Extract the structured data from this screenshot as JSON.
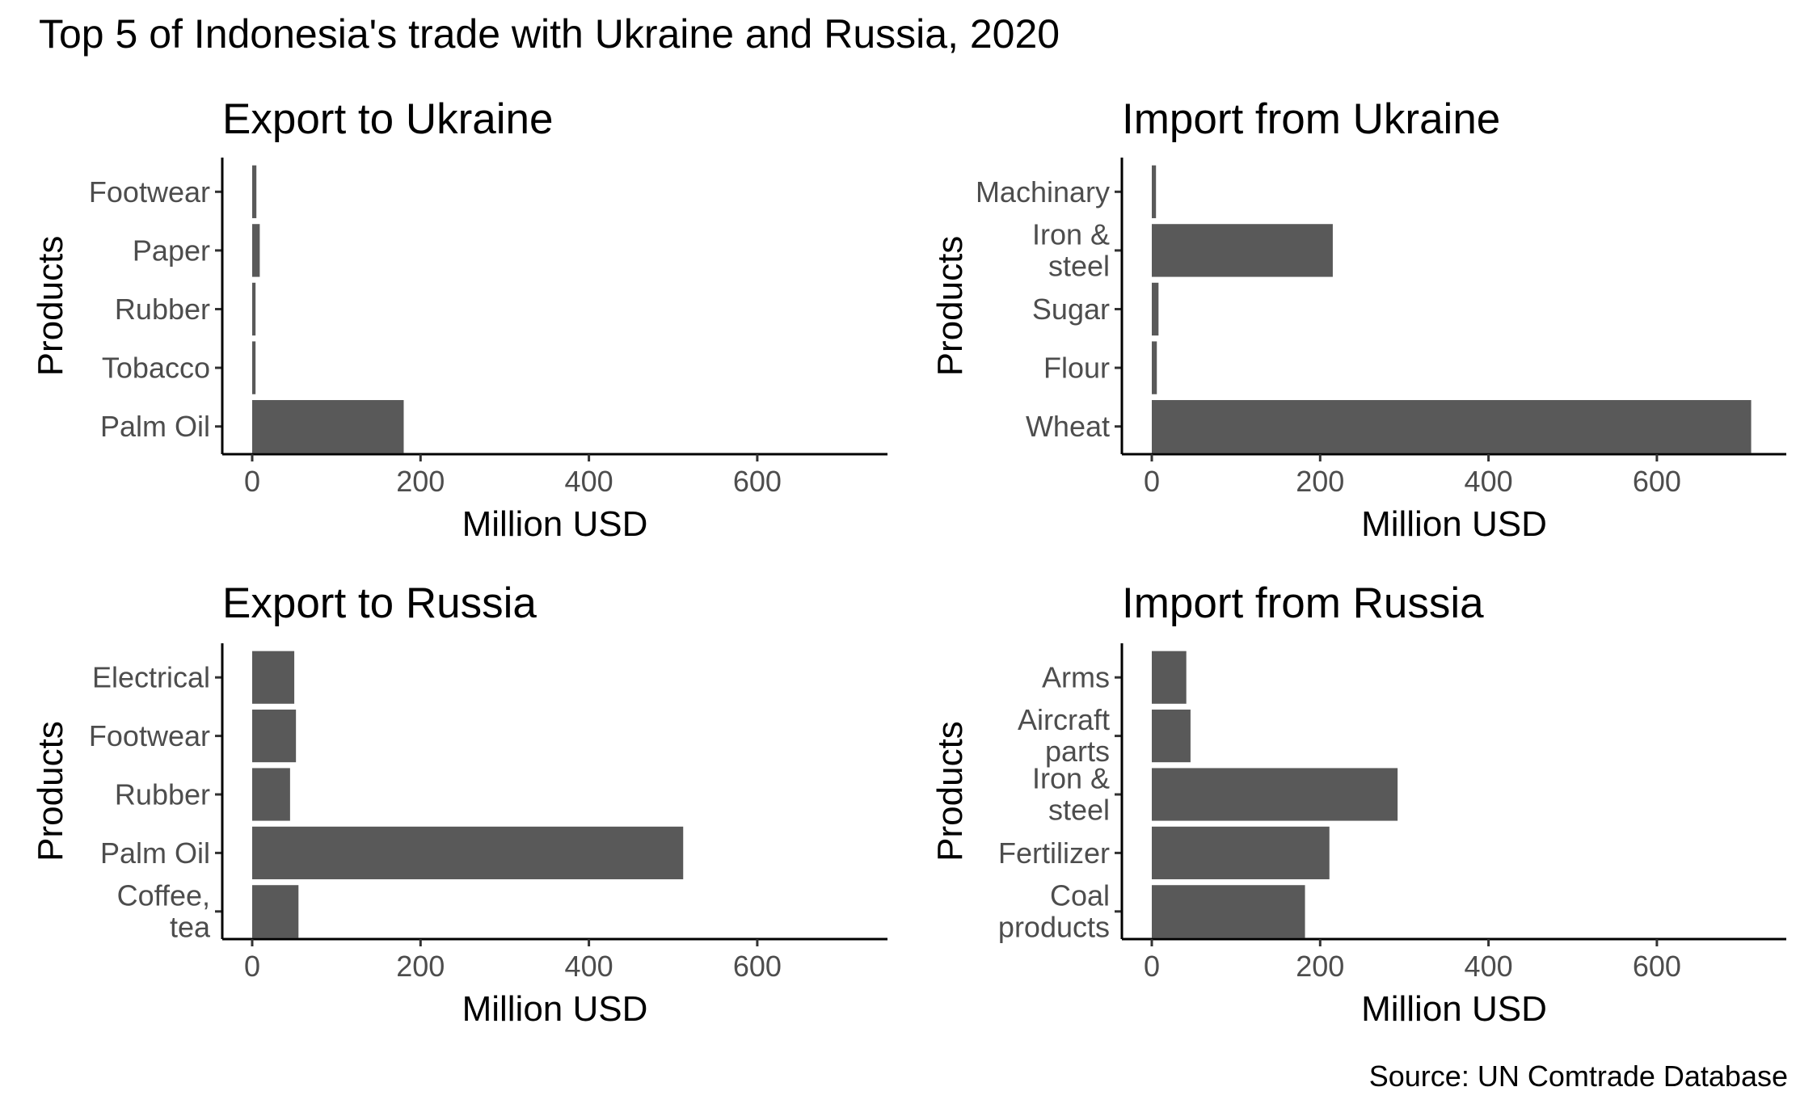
{
  "title": "Top 5 of Indonesia's trade with Ukraine and Russia, 2020",
  "caption": "Source: UN Comtrade Database",
  "colors": {
    "bar": "#595959",
    "axis": "#000000",
    "tick_label": "#4d4d4d",
    "background": "#ffffff"
  },
  "chart_data": [
    {
      "type": "bar",
      "orientation": "horizontal",
      "title": "Export to Ukraine",
      "xlabel": "Million USD",
      "ylabel": "Products",
      "xlim": [
        0,
        750
      ],
      "xticks": [
        0,
        200,
        400,
        600
      ],
      "categories": [
        "Footwear",
        "Paper",
        "Rubber",
        "Tobacco",
        "Palm Oil"
      ],
      "values": [
        5,
        9,
        4,
        4,
        180
      ],
      "grid": false,
      "legend": "none"
    },
    {
      "type": "bar",
      "orientation": "horizontal",
      "title": "Import from Ukraine",
      "xlabel": "Million USD",
      "ylabel": "Products",
      "xlim": [
        0,
        750
      ],
      "xticks": [
        0,
        200,
        400,
        600
      ],
      "categories": [
        "Machinary",
        "Iron & steel",
        "Sugar",
        "Flour",
        "Wheat"
      ],
      "values": [
        5,
        215,
        8,
        6,
        712
      ],
      "grid": false,
      "legend": "none"
    },
    {
      "type": "bar",
      "orientation": "horizontal",
      "title": "Export to Russia",
      "xlabel": "Million USD",
      "ylabel": "Products",
      "xlim": [
        0,
        750
      ],
      "xticks": [
        0,
        200,
        400,
        600
      ],
      "categories": [
        "Electrical",
        "Footwear",
        "Rubber",
        "Palm Oil",
        "Coffee, tea"
      ],
      "values": [
        50,
        52,
        45,
        512,
        55
      ],
      "grid": false,
      "legend": "none"
    },
    {
      "type": "bar",
      "orientation": "horizontal",
      "title": "Import from Russia",
      "xlabel": "Million USD",
      "ylabel": "Products",
      "xlim": [
        0,
        750
      ],
      "xticks": [
        0,
        200,
        400,
        600
      ],
      "categories": [
        "Arms",
        "Aircraft parts",
        "Iron & steel",
        "Fertilizer",
        "Coal products"
      ],
      "values": [
        41,
        46,
        292,
        211,
        182
      ],
      "grid": false,
      "legend": "none"
    }
  ]
}
